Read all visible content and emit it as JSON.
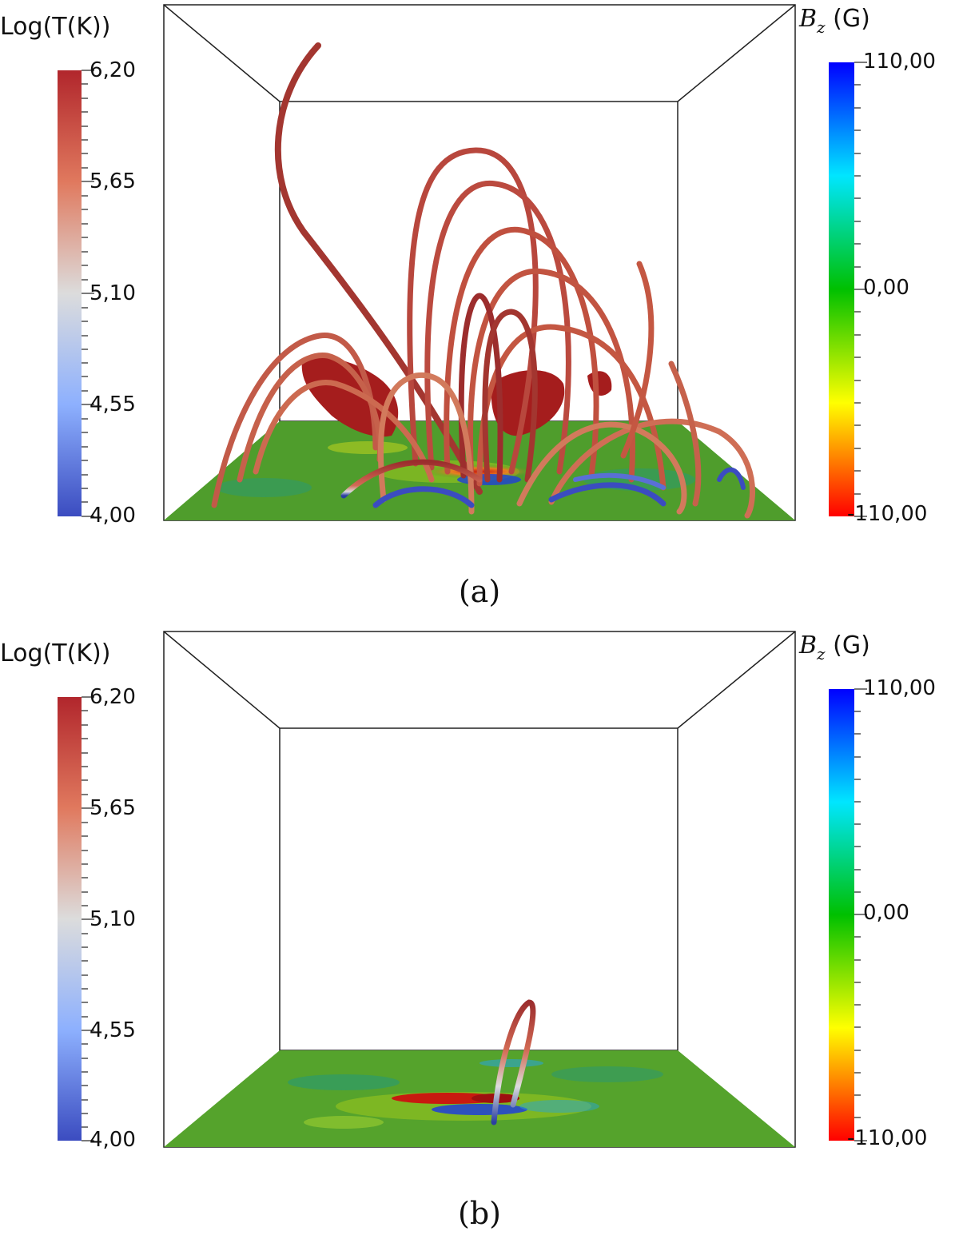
{
  "panels": [
    {
      "label": "(a)",
      "temperature_colorbar": {
        "title": "Log(T(K))",
        "ticks": [
          "6,20",
          "5,65",
          "5,10",
          "4,55",
          "4,00"
        ]
      },
      "bz_colorbar": {
        "title_symbol": "B",
        "title_subscript": "z",
        "title_unit": "(G)",
        "ticks": [
          "110,00",
          "0,00",
          "-110,00"
        ]
      }
    },
    {
      "label": "(b)",
      "temperature_colorbar": {
        "title": "Log(T(K))",
        "ticks": [
          "6,20",
          "5,65",
          "5,10",
          "4,55",
          "4,00"
        ]
      },
      "bz_colorbar": {
        "title_symbol": "B",
        "title_subscript": "z",
        "title_unit": "(G)",
        "ticks": [
          "110,00",
          "0,00",
          "-110,00"
        ]
      }
    }
  ],
  "colors": {
    "temp_high": "#b1262c",
    "temp_mid": "#dcdcdc",
    "temp_low": "#3b4cc0",
    "bz_positive": "#0000ff",
    "bz_zero": "#00c000",
    "bz_negative": "#ff0000",
    "floor_base": "#4a9a2a",
    "loop_color": "#b9483e",
    "hot_blob": "#a51d1d"
  }
}
